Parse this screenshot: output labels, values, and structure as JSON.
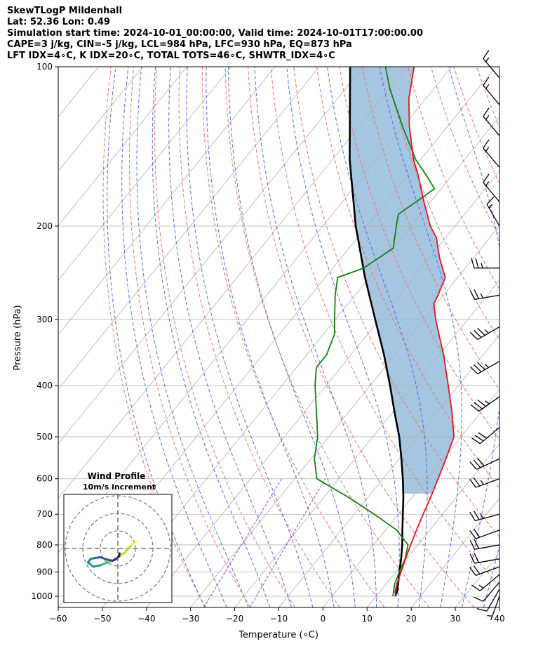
{
  "title_lines": {
    "line1": "SkewTLogP Mildenhall",
    "line2": "Lat: 52.36   Lon: 0.49",
    "line3": "Simulation start time: 2024-10-01_00:00:00, Valid time: 2024-10-01T17:00:00.00",
    "line4": "CAPE=3 j/kg, CIN=-5 j/kg, LCL=984 hPa, LFC=930 hPa, EQ=873 hPa",
    "line5": "LFT IDX=4∘C, K IDX=20∘C, TOTAL TOTS=46∘C, SHWTR_IDX=4∘C"
  },
  "colors": {
    "temperature": "#e8121b",
    "dewpoint": "#118011",
    "parcel": "#000000",
    "cape_fill": "#a4c6e0",
    "dry_adiabat": "#f07070",
    "moist_adiabat": "#5a68f0",
    "mixing_ratio": "#9d4bd0",
    "isotherm": "#b0b0b0"
  },
  "chart_data": {
    "type": "skew-t log-p",
    "xlabel": "Temperature (∘C)",
    "ylabel": "Pressure (hPa)",
    "xlim": [
      -60,
      40
    ],
    "ylim": [
      1050,
      100
    ],
    "y_scale": "log",
    "x_ticks": [
      "−60",
      "−50",
      "−40",
      "−30",
      "−20",
      "−10",
      "0",
      "10",
      "20",
      "30",
      "40"
    ],
    "y_ticks": [
      "100",
      "200",
      "300",
      "400",
      "500",
      "600",
      "700",
      "800",
      "900",
      "1000"
    ],
    "series": [
      {
        "key": "temperature",
        "points": [
          [
            1000,
            14.5
          ],
          [
            980,
            13.4
          ],
          [
            950,
            12.5
          ],
          [
            900,
            11.2
          ],
          [
            850,
            9.8
          ],
          [
            800,
            8.4
          ],
          [
            750,
            7.0
          ],
          [
            700,
            5.6
          ],
          [
            650,
            4.2
          ],
          [
            600,
            2.5
          ],
          [
            550,
            0.6
          ],
          [
            500,
            -1.6
          ],
          [
            450,
            -6.5
          ],
          [
            400,
            -12.3
          ],
          [
            350,
            -19
          ],
          [
            300,
            -27.3
          ],
          [
            280,
            -30.6
          ],
          [
            270,
            -31.2
          ],
          [
            250,
            -32.8
          ],
          [
            230,
            -37.6
          ],
          [
            210,
            -42.2
          ],
          [
            200,
            -45.6
          ],
          [
            180,
            -51.5
          ],
          [
            160,
            -57.8
          ],
          [
            150,
            -61.5
          ],
          [
            130,
            -68.5
          ],
          [
            115,
            -73.8
          ],
          [
            100,
            -78.5
          ]
        ]
      },
      {
        "key": "dewpoint",
        "points": [
          [
            1000,
            13.8
          ],
          [
            950,
            12.0
          ],
          [
            900,
            10.8
          ],
          [
            850,
            9.7
          ],
          [
            800,
            7.8
          ],
          [
            750,
            2.5
          ],
          [
            700,
            -5.5
          ],
          [
            650,
            -14.5
          ],
          [
            600,
            -25.0
          ],
          [
            550,
            -29.2
          ],
          [
            500,
            -32.5
          ],
          [
            450,
            -37.2
          ],
          [
            400,
            -42.5
          ],
          [
            370,
            -45.5
          ],
          [
            350,
            -45.5
          ],
          [
            320,
            -47.5
          ],
          [
            300,
            -50.2
          ],
          [
            270,
            -54.5
          ],
          [
            250,
            -57.2
          ],
          [
            240,
            -53.0
          ],
          [
            220,
            -50.0
          ],
          [
            200,
            -53.3
          ],
          [
            190,
            -55.0
          ],
          [
            170,
            -51.5
          ],
          [
            160,
            -56.0
          ],
          [
            150,
            -61.0
          ],
          [
            130,
            -70.0
          ],
          [
            110,
            -80.0
          ],
          [
            100,
            -85.0
          ]
        ]
      },
      {
        "key": "parcel",
        "points": [
          [
            1000,
            14.3
          ],
          [
            984,
            14.0
          ],
          [
            950,
            12.8
          ],
          [
            900,
            10.8
          ],
          [
            850,
            8.8
          ],
          [
            800,
            6.5
          ],
          [
            750,
            3.8
          ],
          [
            700,
            1.0
          ],
          [
            650,
            -2.0
          ],
          [
            600,
            -5.5
          ],
          [
            550,
            -9.5
          ],
          [
            500,
            -14.0
          ],
          [
            450,
            -19.5
          ],
          [
            400,
            -25.5
          ],
          [
            350,
            -32.5
          ],
          [
            300,
            -41.0
          ],
          [
            250,
            -51.0
          ],
          [
            200,
            -62.5
          ],
          [
            150,
            -76.0
          ],
          [
            100,
            -93.0
          ]
        ]
      }
    ],
    "wind_barbs": [
      {
        "p": 1000,
        "speed_kt": 5,
        "dir_deg": 200
      },
      {
        "p": 970,
        "speed_kt": 10,
        "dir_deg": 210
      },
      {
        "p": 940,
        "speed_kt": 10,
        "dir_deg": 220
      },
      {
        "p": 910,
        "speed_kt": 15,
        "dir_deg": 230
      },
      {
        "p": 880,
        "speed_kt": 20,
        "dir_deg": 250
      },
      {
        "p": 850,
        "speed_kt": 20,
        "dir_deg": 260
      },
      {
        "p": 800,
        "speed_kt": 20,
        "dir_deg": 260
      },
      {
        "p": 750,
        "speed_kt": 20,
        "dir_deg": 250
      },
      {
        "p": 700,
        "speed_kt": 25,
        "dir_deg": 255
      },
      {
        "p": 600,
        "speed_kt": 25,
        "dir_deg": 250
      },
      {
        "p": 550,
        "speed_kt": 30,
        "dir_deg": 245
      },
      {
        "p": 480,
        "speed_kt": 30,
        "dir_deg": 230
      },
      {
        "p": 420,
        "speed_kt": 35,
        "dir_deg": 235
      },
      {
        "p": 360,
        "speed_kt": 35,
        "dir_deg": 240
      },
      {
        "p": 310,
        "speed_kt": 35,
        "dir_deg": 240
      },
      {
        "p": 270,
        "speed_kt": 25,
        "dir_deg": 260
      },
      {
        "p": 240,
        "speed_kt": 25,
        "dir_deg": 270
      },
      {
        "p": 200,
        "speed_kt": 15,
        "dir_deg": 330
      },
      {
        "p": 180,
        "speed_kt": 15,
        "dir_deg": 320
      },
      {
        "p": 155,
        "speed_kt": 15,
        "dir_deg": 320
      },
      {
        "p": 135,
        "speed_kt": 15,
        "dir_deg": 320
      },
      {
        "p": 118,
        "speed_kt": 15,
        "dir_deg": 320
      },
      {
        "p": 105,
        "speed_kt": 15,
        "dir_deg": 320
      }
    ],
    "hodograph": {
      "title": "Wind Profile",
      "subtitle": "10m/s increment",
      "rings_ms": [
        10,
        20,
        30
      ],
      "points": [
        [
          5.1,
          2.0
        ],
        [
          4.5,
          1.5
        ],
        [
          3.5,
          0.5
        ],
        [
          2.0,
          -1.2
        ],
        [
          0.5,
          -2.2
        ],
        [
          -1.5,
          -3.5
        ],
        [
          -3.0,
          -4.0
        ],
        [
          -5.0,
          -4.8
        ],
        [
          -7.0,
          -5.2
        ],
        [
          -8.5,
          -4.0
        ],
        [
          -7.8,
          -3.0
        ],
        [
          -6.5,
          -2.7
        ],
        [
          -5.0,
          -2.5
        ],
        [
          -3.0,
          -3.2
        ],
        [
          -1.5,
          -3.5
        ],
        [
          -0.5,
          -3.0
        ],
        [
          0.3,
          -2.2
        ],
        [
          0.5,
          -1.4
        ]
      ]
    }
  }
}
